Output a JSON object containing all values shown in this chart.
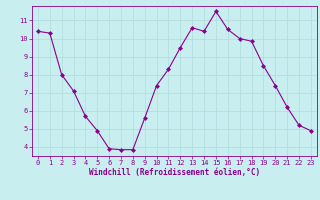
{
  "x": [
    0,
    1,
    2,
    3,
    4,
    5,
    6,
    7,
    8,
    9,
    10,
    11,
    12,
    13,
    14,
    15,
    16,
    17,
    18,
    19,
    20,
    21,
    22,
    23
  ],
  "y": [
    10.4,
    10.3,
    8.0,
    7.1,
    5.7,
    4.9,
    3.9,
    3.85,
    3.85,
    5.6,
    7.4,
    8.3,
    9.5,
    10.6,
    10.4,
    11.5,
    10.5,
    10.0,
    9.85,
    8.5,
    7.4,
    6.2,
    5.2,
    4.9
  ],
  "line_color": "#8B008B",
  "marker": "D",
  "marker_size": 2,
  "bg_color": "#C8EEF0",
  "grid_color": "#A8D8D8",
  "xlabel": "Windchill (Refroidissement éolien,°C)",
  "xlabel_color": "#8B008B",
  "tick_color": "#8B008B",
  "xlim": [
    -0.5,
    23.5
  ],
  "ylim": [
    3.5,
    11.8
  ],
  "yticks": [
    4,
    5,
    6,
    7,
    8,
    9,
    10,
    11
  ],
  "xticks": [
    0,
    1,
    2,
    3,
    4,
    5,
    6,
    7,
    8,
    9,
    10,
    11,
    12,
    13,
    14,
    15,
    16,
    17,
    18,
    19,
    20,
    21,
    22,
    23
  ],
  "spine_color": "#8B008B",
  "tick_fontsize": 5.0,
  "xlabel_fontsize": 5.5,
  "linewidth": 0.8
}
